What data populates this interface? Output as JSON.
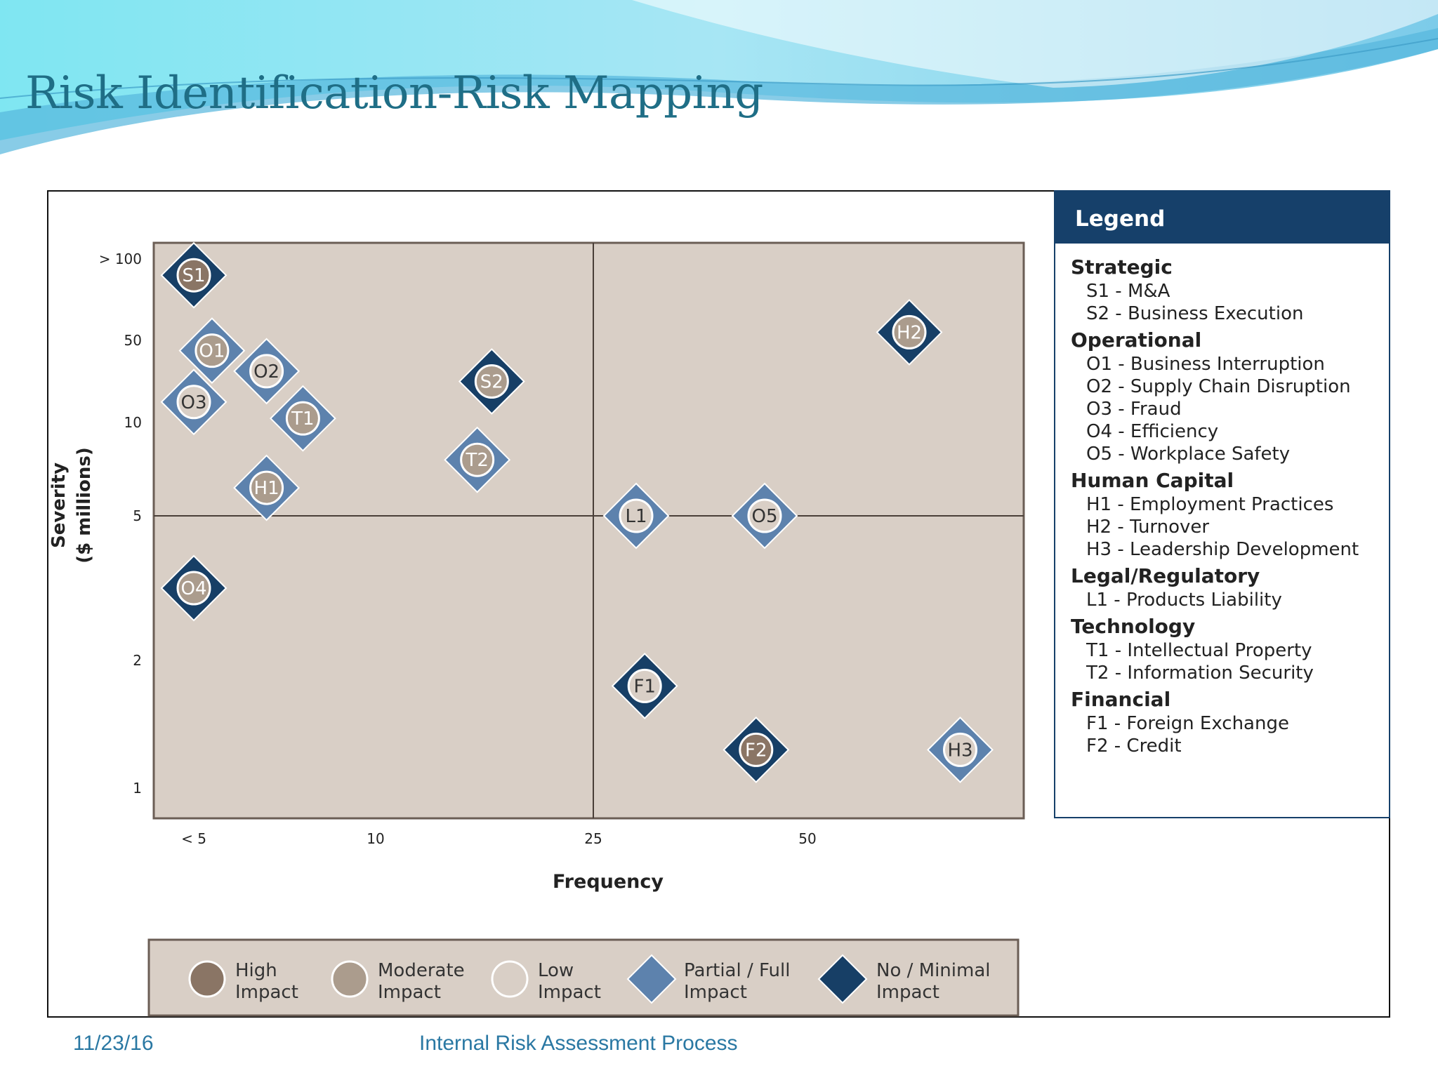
{
  "slide": {
    "title": "Risk Identification-Risk Mapping",
    "footer_date": "11/23/16",
    "footer_text": "Internal Risk Assessment Process"
  },
  "colors": {
    "plot_bg": "#d9cfc6",
    "diamond_partial": "#5d82ad",
    "diamond_none": "#173f66",
    "circle_high": "#8a7565",
    "circle_moderate": "#ab9c8d",
    "circle_low": "#d9cfc6",
    "legend_header": "#16406a",
    "title": "#1f6e86"
  },
  "legend": {
    "header": "Legend",
    "groups": [
      {
        "title": "Strategic",
        "items": [
          "S1 - M&A",
          "S2 - Business Execution"
        ]
      },
      {
        "title": "Operational",
        "items": [
          "O1 - Business Interruption",
          "O2 - Supply Chain Disruption",
          "O3 - Fraud",
          "O4 - Efficiency",
          "O5 - Workplace Safety"
        ]
      },
      {
        "title": "Human Capital",
        "items": [
          "H1 - Employment Practices",
          "H2 - Turnover",
          "H3 - Leadership Development"
        ]
      },
      {
        "title": "Legal/Regulatory",
        "items": [
          "L1 - Products Liability"
        ]
      },
      {
        "title": "Technology",
        "items": [
          "T1 - Intellectual Property",
          "T2 - Information Security"
        ]
      },
      {
        "title": "Financial",
        "items": [
          "F1 - Foreign Exchange",
          "F2 - Credit"
        ]
      }
    ]
  },
  "chart_data": {
    "type": "scatter",
    "title": "",
    "xlabel": "Frequency",
    "ylabel": "Severity",
    "ylabel_unit": "($ millions)",
    "x_ticks": [
      "< 5",
      "10",
      "25",
      "50"
    ],
    "y_ticks": [
      "> 100",
      "50",
      "10",
      "5",
      "2",
      "1"
    ],
    "x_scale": "ordinal",
    "y_scale": "ordinal",
    "quadrant_divider": {
      "x": 25,
      "y": 5
    },
    "points": [
      {
        "label": "S1",
        "x": 5,
        "y": 90,
        "impact": "high",
        "control": "none"
      },
      {
        "label": "O1",
        "x": 5.5,
        "y": 45,
        "impact": "moderate",
        "control": "partial"
      },
      {
        "label": "O2",
        "x": 7,
        "y": 35,
        "impact": "low",
        "control": "partial"
      },
      {
        "label": "O3",
        "x": 5,
        "y": 20,
        "impact": "low",
        "control": "partial"
      },
      {
        "label": "T1",
        "x": 8,
        "y": 12,
        "impact": "moderate",
        "control": "partial"
      },
      {
        "label": "S2",
        "x": 18,
        "y": 30,
        "impact": "moderate",
        "control": "none"
      },
      {
        "label": "T2",
        "x": 17,
        "y": 8,
        "impact": "moderate",
        "control": "partial"
      },
      {
        "label": "H1",
        "x": 7,
        "y": 6.5,
        "impact": "moderate",
        "control": "partial"
      },
      {
        "label": "L1",
        "x": 30,
        "y": 5,
        "impact": "low",
        "control": "partial"
      },
      {
        "label": "O5",
        "x": 45,
        "y": 5,
        "impact": "low",
        "control": "partial"
      },
      {
        "label": "H2",
        "x": 70,
        "y": 55,
        "impact": "moderate",
        "control": "none"
      },
      {
        "label": "O4",
        "x": 5,
        "y": 3.5,
        "impact": "moderate",
        "control": "none"
      },
      {
        "label": "F1",
        "x": 31,
        "y": 1.8,
        "impact": "low",
        "control": "none"
      },
      {
        "label": "F2",
        "x": 44,
        "y": 1.3,
        "impact": "high",
        "control": "none"
      },
      {
        "label": "H3",
        "x": 80,
        "y": 1.3,
        "impact": "low",
        "control": "partial"
      }
    ],
    "impact_legend": [
      {
        "key": "high",
        "line1": "High",
        "line2": "Impact"
      },
      {
        "key": "moderate",
        "line1": "Moderate",
        "line2": "Impact"
      },
      {
        "key": "low",
        "line1": "Low",
        "line2": "Impact"
      },
      {
        "key": "partial",
        "line1": "Partial / Full",
        "line2": "Impact"
      },
      {
        "key": "none",
        "line1": "No / Minimal",
        "line2": "Impact"
      }
    ],
    "grid": false
  }
}
